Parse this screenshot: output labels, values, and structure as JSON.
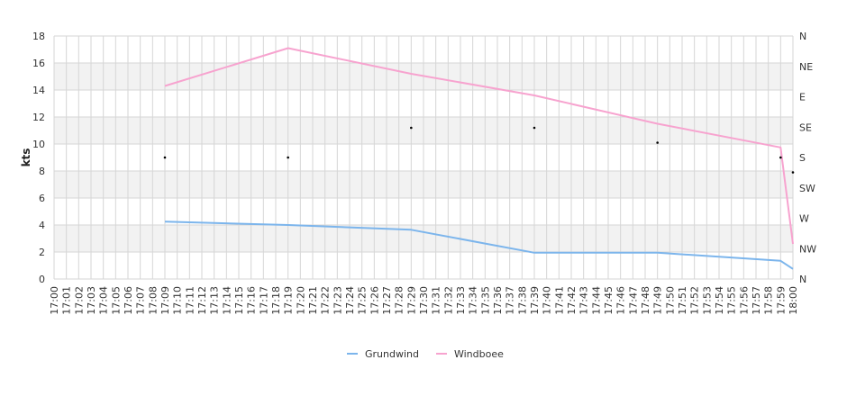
{
  "chart_data": {
    "type": "line",
    "ylabel": "kts",
    "ylim": [
      0,
      18
    ],
    "yticks": [
      0,
      2,
      4,
      6,
      8,
      10,
      12,
      14,
      16,
      18
    ],
    "x_range": [
      "17:00",
      "18:00"
    ],
    "x_tick_step_minutes": 1,
    "grid": true,
    "banded_background": true,
    "legend_position": "bottom-center",
    "right_axis": {
      "label": "",
      "ticks": [
        "N",
        "NW",
        "W",
        "SW",
        "S",
        "SE",
        "E",
        "NE",
        "N"
      ]
    },
    "series": [
      {
        "name": "Grundwind",
        "color": "#7cb5ec",
        "points": [
          [
            "17:09",
            4.25
          ],
          [
            "17:19",
            4.0
          ],
          [
            "17:29",
            3.65
          ],
          [
            "17:39",
            1.95
          ],
          [
            "17:49",
            1.95
          ],
          [
            "17:59",
            1.35
          ],
          [
            "18:00",
            0.75
          ]
        ]
      },
      {
        "name": "Windboee",
        "color": "#f7a3cf",
        "points": [
          [
            "17:09",
            14.3
          ],
          [
            "17:19",
            17.1
          ],
          [
            "17:29",
            15.2
          ],
          [
            "17:39",
            13.6
          ],
          [
            "17:49",
            11.5
          ],
          [
            "17:59",
            9.75
          ],
          [
            "18:00",
            2.6
          ]
        ]
      }
    ],
    "direction_markers": [
      [
        "17:09",
        9.0
      ],
      [
        "17:19",
        9.0
      ],
      [
        "17:29",
        11.2
      ],
      [
        "17:39",
        11.2
      ],
      [
        "17:49",
        10.1
      ],
      [
        "17:59",
        9.0
      ],
      [
        "18:00",
        7.9
      ]
    ]
  }
}
